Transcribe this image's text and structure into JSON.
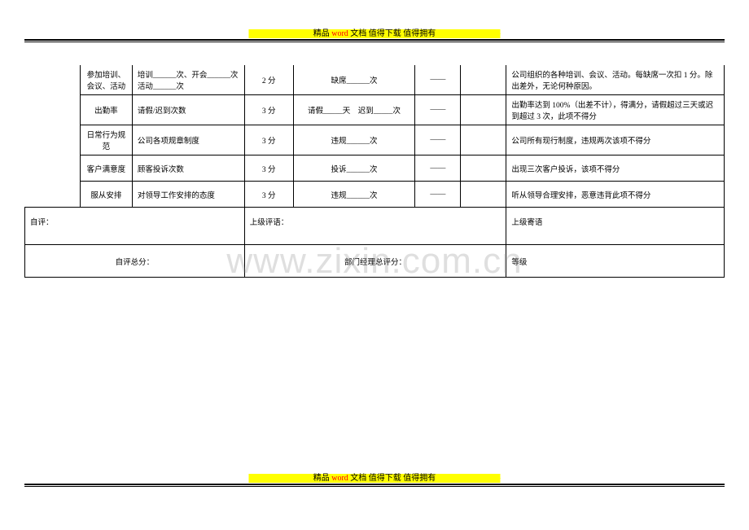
{
  "banner": {
    "dashes_left": "----------------------------",
    "dashes_right": "----------------------------",
    "pre": "精品 ",
    "word": "word",
    "post": " 文档  值得下载  值得拥有"
  },
  "watermark": "www.zixin.com.cn",
  "rows": [
    {
      "item": "参加培训、会议、活动",
      "indicator": "培训______次、开会______次 活动______次",
      "points": "2 分",
      "record": "缺席______次",
      "blank1": "——",
      "blank2": "",
      "note": "公司组织的各种培训、会议、活动。每缺席一次扣 1 分。除出差外，无论何种原因。"
    },
    {
      "item": "出勤率",
      "indicator": "请假/迟到次数",
      "points": "3 分",
      "record": "请假_____天　迟到_____次",
      "blank1": "——",
      "blank2": "",
      "note": "出勤率达到 100%（出差不计），得满分，请假超过三天或迟到超过 3 次，此项不得分"
    },
    {
      "item": "日常行为规范",
      "indicator": "公司各项规章制度",
      "points": "3 分",
      "record": "违规______次",
      "blank1": "——",
      "blank2": "",
      "note": "公司所有现行制度，违规两次该项不得分"
    },
    {
      "item": "客户满意度",
      "indicator": "顾客投诉次数",
      "points": "3 分",
      "record": "投诉______次",
      "blank1": "——",
      "blank2": "",
      "note": "出现三次客户投诉，该项不得分"
    },
    {
      "item": "服从安排",
      "indicator": "对领导工作安排的态度",
      "points": "3 分",
      "record": "违规______次",
      "blank1": "——",
      "blank2": "",
      "note": "听从领导合理安排，恶意违背此项不得分"
    }
  ],
  "commentRow": {
    "self": "自评：",
    "superior": "上级评语：",
    "msg": "上级寄语"
  },
  "bottomRow": {
    "selfTotal": "自评总分：",
    "mgrTotal": "部门经理总评分：",
    "grade": "等级"
  }
}
